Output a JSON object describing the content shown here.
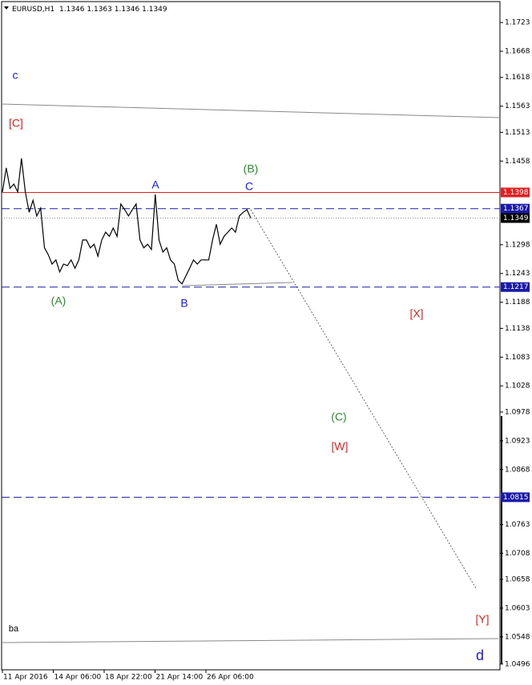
{
  "chart_data": {
    "type": "line",
    "symbol": "EURUSD,H1",
    "ohlc": [
      1.1346,
      1.1363,
      1.1346,
      1.1349
    ],
    "color": "#000000",
    "values": [
      1.1399,
      1.1445,
      1.1406,
      1.1414,
      1.1399,
      1.1463,
      1.1399,
      1.136,
      1.1383,
      1.1353,
      1.1368,
      1.1292,
      1.1279,
      1.1261,
      1.1269,
      1.1246,
      1.1261,
      1.1258,
      1.1269,
      1.1253,
      1.1269,
      1.1307,
      1.1307,
      1.1292,
      1.1299,
      1.1276,
      1.1307,
      1.1322,
      1.1314,
      1.133,
      1.1314,
      1.1376,
      1.1365,
      1.1353,
      1.1365,
      1.1376,
      1.1307,
      1.1292,
      1.1299,
      1.1289,
      1.1394,
      1.1307,
      1.1284,
      1.1292,
      1.1269,
      1.1261,
      1.123,
      1.1223,
      1.1238,
      1.1253,
      1.1269,
      1.1261,
      1.1269,
      1.1269,
      1.1269,
      1.1307,
      1.1337,
      1.1299,
      1.1314,
      1.1322,
      1.133,
      1.1322,
      1.1353,
      1.136,
      1.1365,
      1.1349
    ],
    "x_labels": [
      "11 Apr 2016",
      "14 Apr 06:00",
      "18 Apr 22:00",
      "21 Apr 14:00",
      "26 Apr 06:00"
    ],
    "ylim": [
      1.0485,
      1.1763
    ],
    "yticks": [
      1.1723,
      1.1668,
      1.1618,
      1.1563,
      1.1513,
      1.1458,
      1.1298,
      1.1243,
      1.1188,
      1.1138,
      1.1083,
      1.1028,
      1.0978,
      1.0923,
      1.0868,
      1.0763,
      1.0708,
      1.0658,
      1.0603,
      1.0548,
      1.0496
    ],
    "levels": [
      {
        "value": 1.1398,
        "color": "#e02020",
        "style": "solid"
      },
      {
        "value": 1.1367,
        "color": "#1a1aa8",
        "style": "dashed"
      },
      {
        "value": 1.1349,
        "color": "#000000",
        "style": "dotted"
      },
      {
        "value": 1.1217,
        "color": "#1a1aa8",
        "style": "dashed"
      },
      {
        "value": 1.0815,
        "color": "#1a1aa8",
        "style": "dashed"
      }
    ],
    "annotations": [
      "c",
      "[C]",
      "(B)",
      "A",
      "C",
      "(A)",
      "B",
      "[X]",
      "(C)",
      "[W]",
      "[Y]",
      "ba",
      "d"
    ]
  }
}
